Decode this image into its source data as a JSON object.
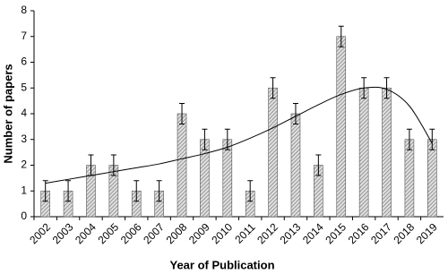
{
  "chart_data": {
    "type": "bar",
    "x_label": "Year of Publication",
    "y_label": "Number of papers",
    "categories": [
      "2002",
      "2003",
      "2004",
      "2005",
      "2006",
      "2007",
      "2008",
      "2009",
      "2010",
      "2011",
      "2012",
      "2013",
      "2014",
      "2015",
      "2016",
      "2017",
      "2018",
      "2019"
    ],
    "values": [
      1,
      1,
      2,
      2,
      1,
      1,
      4,
      3,
      3,
      1,
      5,
      4,
      2,
      7,
      5,
      5,
      3,
      3
    ],
    "errors": [
      0.4,
      0.4,
      0.4,
      0.4,
      0.4,
      0.4,
      0.4,
      0.4,
      0.4,
      0.4,
      0.4,
      0.4,
      0.4,
      0.4,
      0.4,
      0.4,
      0.4,
      0.4
    ],
    "trendline_values": [
      1.3,
      1.45,
      1.6,
      1.75,
      1.9,
      2.05,
      2.25,
      2.45,
      2.7,
      3.05,
      3.45,
      3.9,
      4.35,
      4.75,
      5.0,
      4.95,
      4.3,
      2.85
    ],
    "color": "#999999",
    "ylim": [
      0,
      8
    ],
    "yticks": [
      0,
      1,
      2,
      3,
      4,
      5,
      6,
      7,
      8
    ],
    "grid": false
  }
}
